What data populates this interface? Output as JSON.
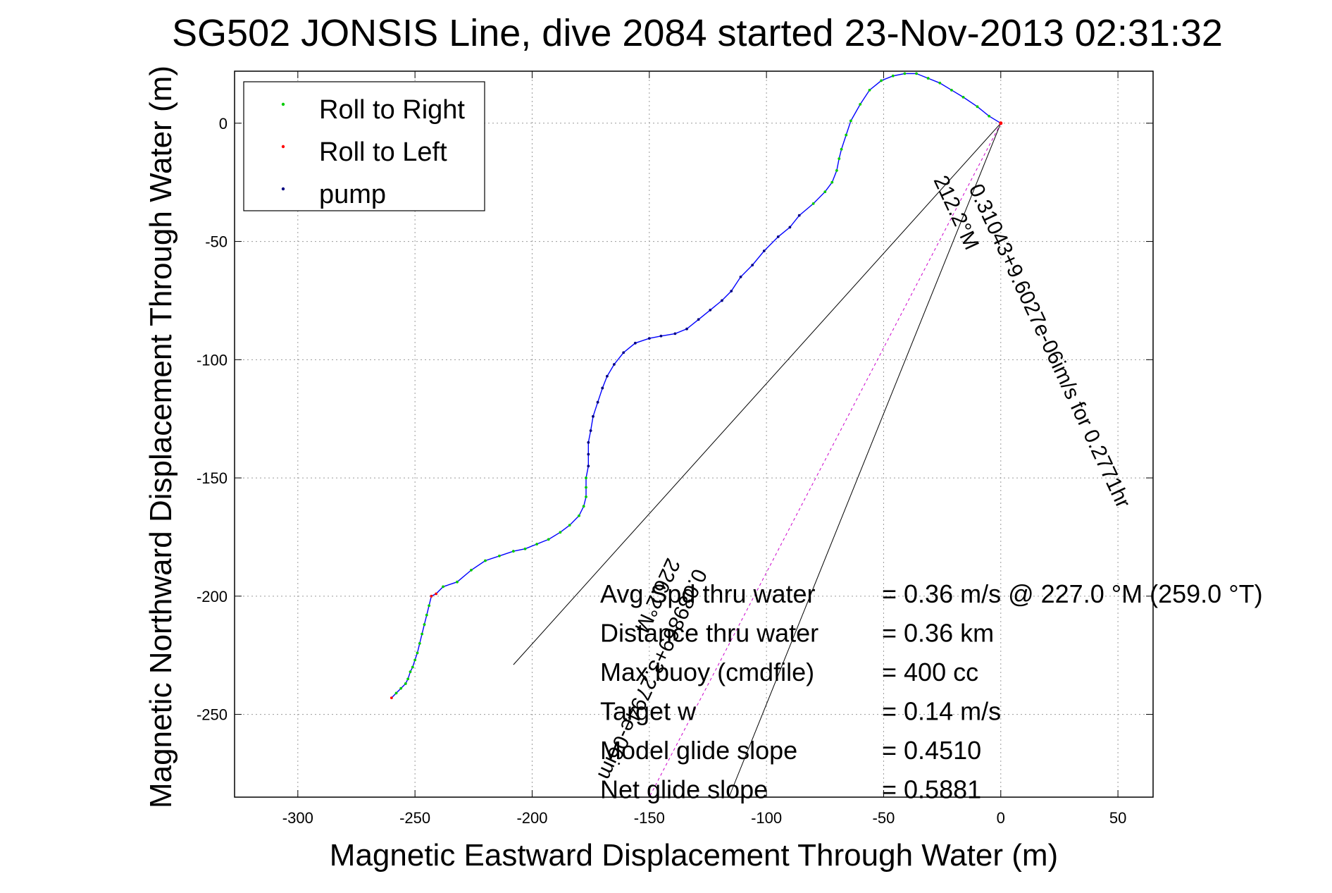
{
  "chart_data": {
    "type": "line",
    "title": "SG502 JONSIS Line, dive 2084 started 23-Nov-2013 02:31:32",
    "xlabel": "Magnetic Eastward Displacement Through Water (m)",
    "ylabel": "Magnetic Northward Displacement Through Water (m)",
    "xlim": [
      -327,
      65
    ],
    "ylim": [
      -285,
      22
    ],
    "xticks": [
      -300,
      -250,
      -200,
      -150,
      -100,
      -50,
      0,
      50
    ],
    "yticks": [
      0,
      -50,
      -100,
      -150,
      -200,
      -250
    ],
    "grid": true,
    "legend": {
      "placement": "top-left",
      "entries": [
        {
          "label": "Roll to Right",
          "color": "#00cc00"
        },
        {
          "label": "Roll to Left",
          "color": "#ff0000"
        },
        {
          "label": "pump",
          "color": "#000080"
        }
      ]
    },
    "track": {
      "color": "#0000ff",
      "x": [
        0,
        -5,
        -10,
        -16,
        -21,
        -26,
        -31,
        -36,
        -41,
        -46,
        -51,
        -56,
        -60,
        -64,
        -66,
        -68,
        -69,
        -70,
        -72,
        -75,
        -80,
        -86,
        -90,
        -95,
        -101,
        -106,
        -111,
        -115,
        -119,
        -124,
        -129,
        -134,
        -139,
        -145,
        -150,
        -156,
        -161,
        -165,
        -168,
        -170,
        -172,
        -174,
        -175,
        -176,
        -176,
        -176,
        -177,
        -177,
        -177,
        -178,
        -180,
        -184,
        -188,
        -193,
        -198,
        -203,
        -208,
        -214,
        -220,
        -226,
        -232,
        -238,
        -241,
        -243,
        -244,
        -245,
        -246,
        -247,
        -248,
        -249,
        -250,
        -251,
        -252,
        -253,
        -254,
        -256,
        -258,
        -260
      ],
      "y": [
        0,
        3,
        7,
        11,
        14,
        17,
        19,
        21,
        21,
        20,
        18,
        14,
        8,
        1,
        -5,
        -11,
        -15,
        -20,
        -25,
        -29,
        -34,
        -39,
        -44,
        -48,
        -54,
        -60,
        -65,
        -71,
        -75,
        -79,
        -83,
        -87,
        -89,
        -90,
        -91,
        -93,
        -97,
        -102,
        -107,
        -112,
        -118,
        -124,
        -130,
        -135,
        -140,
        -145,
        -150,
        -154,
        -158,
        -162,
        -166,
        -170,
        -173,
        -176,
        -178,
        -180,
        -181,
        -183,
        -185,
        -189,
        -194,
        -196,
        -199,
        -200,
        -204,
        -208,
        -212,
        -216,
        -220,
        -224,
        -227,
        -230,
        -232,
        -235,
        -237,
        -239,
        -241,
        -243
      ]
    },
    "fan_lines": {
      "color": "#000000",
      "origin": [
        0,
        0
      ],
      "ends": [
        [
          -208,
          -229
        ],
        [
          -116,
          -285
        ]
      ]
    },
    "heading_line": {
      "color": "#cc00cc",
      "from": [
        0,
        0
      ],
      "to": [
        -150,
        -285
      ]
    },
    "annotations": {
      "current_label": "0.31043+9.6027e-06im/s for 0.2771hr",
      "current_heading": "212.2°M",
      "second_label": "0.089869+3.2794e-06im",
      "second_heading": "226.2°M"
    },
    "stats": [
      {
        "label": "Avg Spd thru water",
        "value": "=  0.36 m/s @ 227.0 °M (259.0 °T)"
      },
      {
        "label": "Distance thru water",
        "value": "=  0.36 km"
      },
      {
        "label": "Max buoy (cmdfile)",
        "value": "= 400 cc"
      },
      {
        "label": "Target w",
        "value": "= 0.14 m/s"
      },
      {
        "label": "Model glide slope",
        "value": "= 0.4510"
      },
      {
        "label": "Net glide slope",
        "value": "= 0.5881"
      }
    ]
  }
}
